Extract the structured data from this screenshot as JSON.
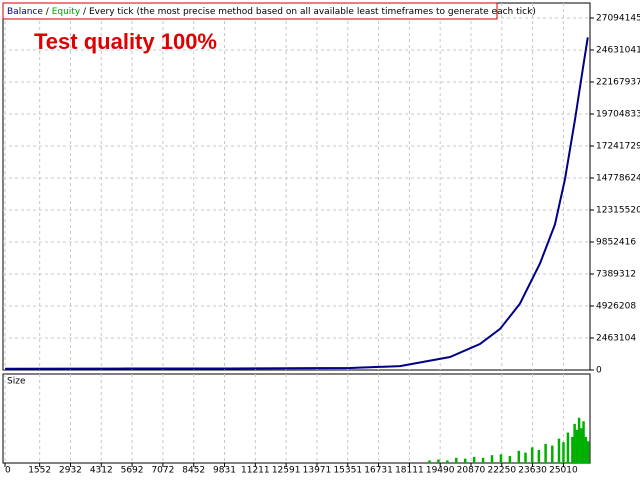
{
  "chart_data": {
    "type": "line",
    "title": "Test quality 100%",
    "subtitle": "Every tick (the most precise method based on all available least timeframes to generate each tick)",
    "separator": "/",
    "x": [
      0,
      5000,
      10000,
      15450,
      17690,
      19930,
      21270,
      22170,
      23060,
      23960,
      24630,
      25080,
      25530,
      25880,
      26100
    ],
    "series": [
      {
        "name": "Balance",
        "color": "#00008b",
        "values": [
          100000,
          110000,
          120000,
          150000,
          300000,
          1000000,
          2000000,
          3160000,
          5100000,
          8200000,
          11200000,
          14700000,
          19300000,
          23200000,
          25600000
        ]
      },
      {
        "name": "Equity",
        "color": "#00a000",
        "values": [
          100000,
          110000,
          120000,
          150000,
          300000,
          1000000,
          2000000,
          3160000,
          5100000,
          8200000,
          11200000,
          14700000,
          19300000,
          23200000,
          25600000
        ]
      }
    ],
    "xlim": [
      0,
      26200
    ],
    "ylim": [
      0,
      28250000
    ],
    "xticks": [
      0,
      1552,
      2932,
      4312,
      5692,
      7072,
      8452,
      9831,
      11211,
      12591,
      13971,
      15351,
      16731,
      18111,
      19490,
      20870,
      22250,
      23630,
      25010
    ],
    "yticks": [
      0,
      2463104,
      4926208,
      7389312,
      9852416,
      12315520,
      14778624,
      17241729,
      19704833,
      22167937,
      24631041,
      27094145
    ],
    "grid": true,
    "size": {
      "name": "Size",
      "color": "#00b000",
      "ylim": [
        0,
        100
      ],
      "x": [
        19000,
        19400,
        19800,
        20200,
        20600,
        21000,
        21400,
        21800,
        22200,
        22600,
        23000,
        23300,
        23600,
        23900,
        24200,
        24500,
        24800,
        25000,
        25200,
        25400,
        25500,
        25600,
        25700,
        25800,
        25900,
        26000,
        26100
      ],
      "values": [
        3,
        4,
        3,
        6,
        5,
        7,
        6,
        9,
        10,
        8,
        14,
        12,
        18,
        15,
        22,
        20,
        28,
        24,
        35,
        30,
        45,
        38,
        52,
        40,
        48,
        30,
        25
      ]
    }
  }
}
